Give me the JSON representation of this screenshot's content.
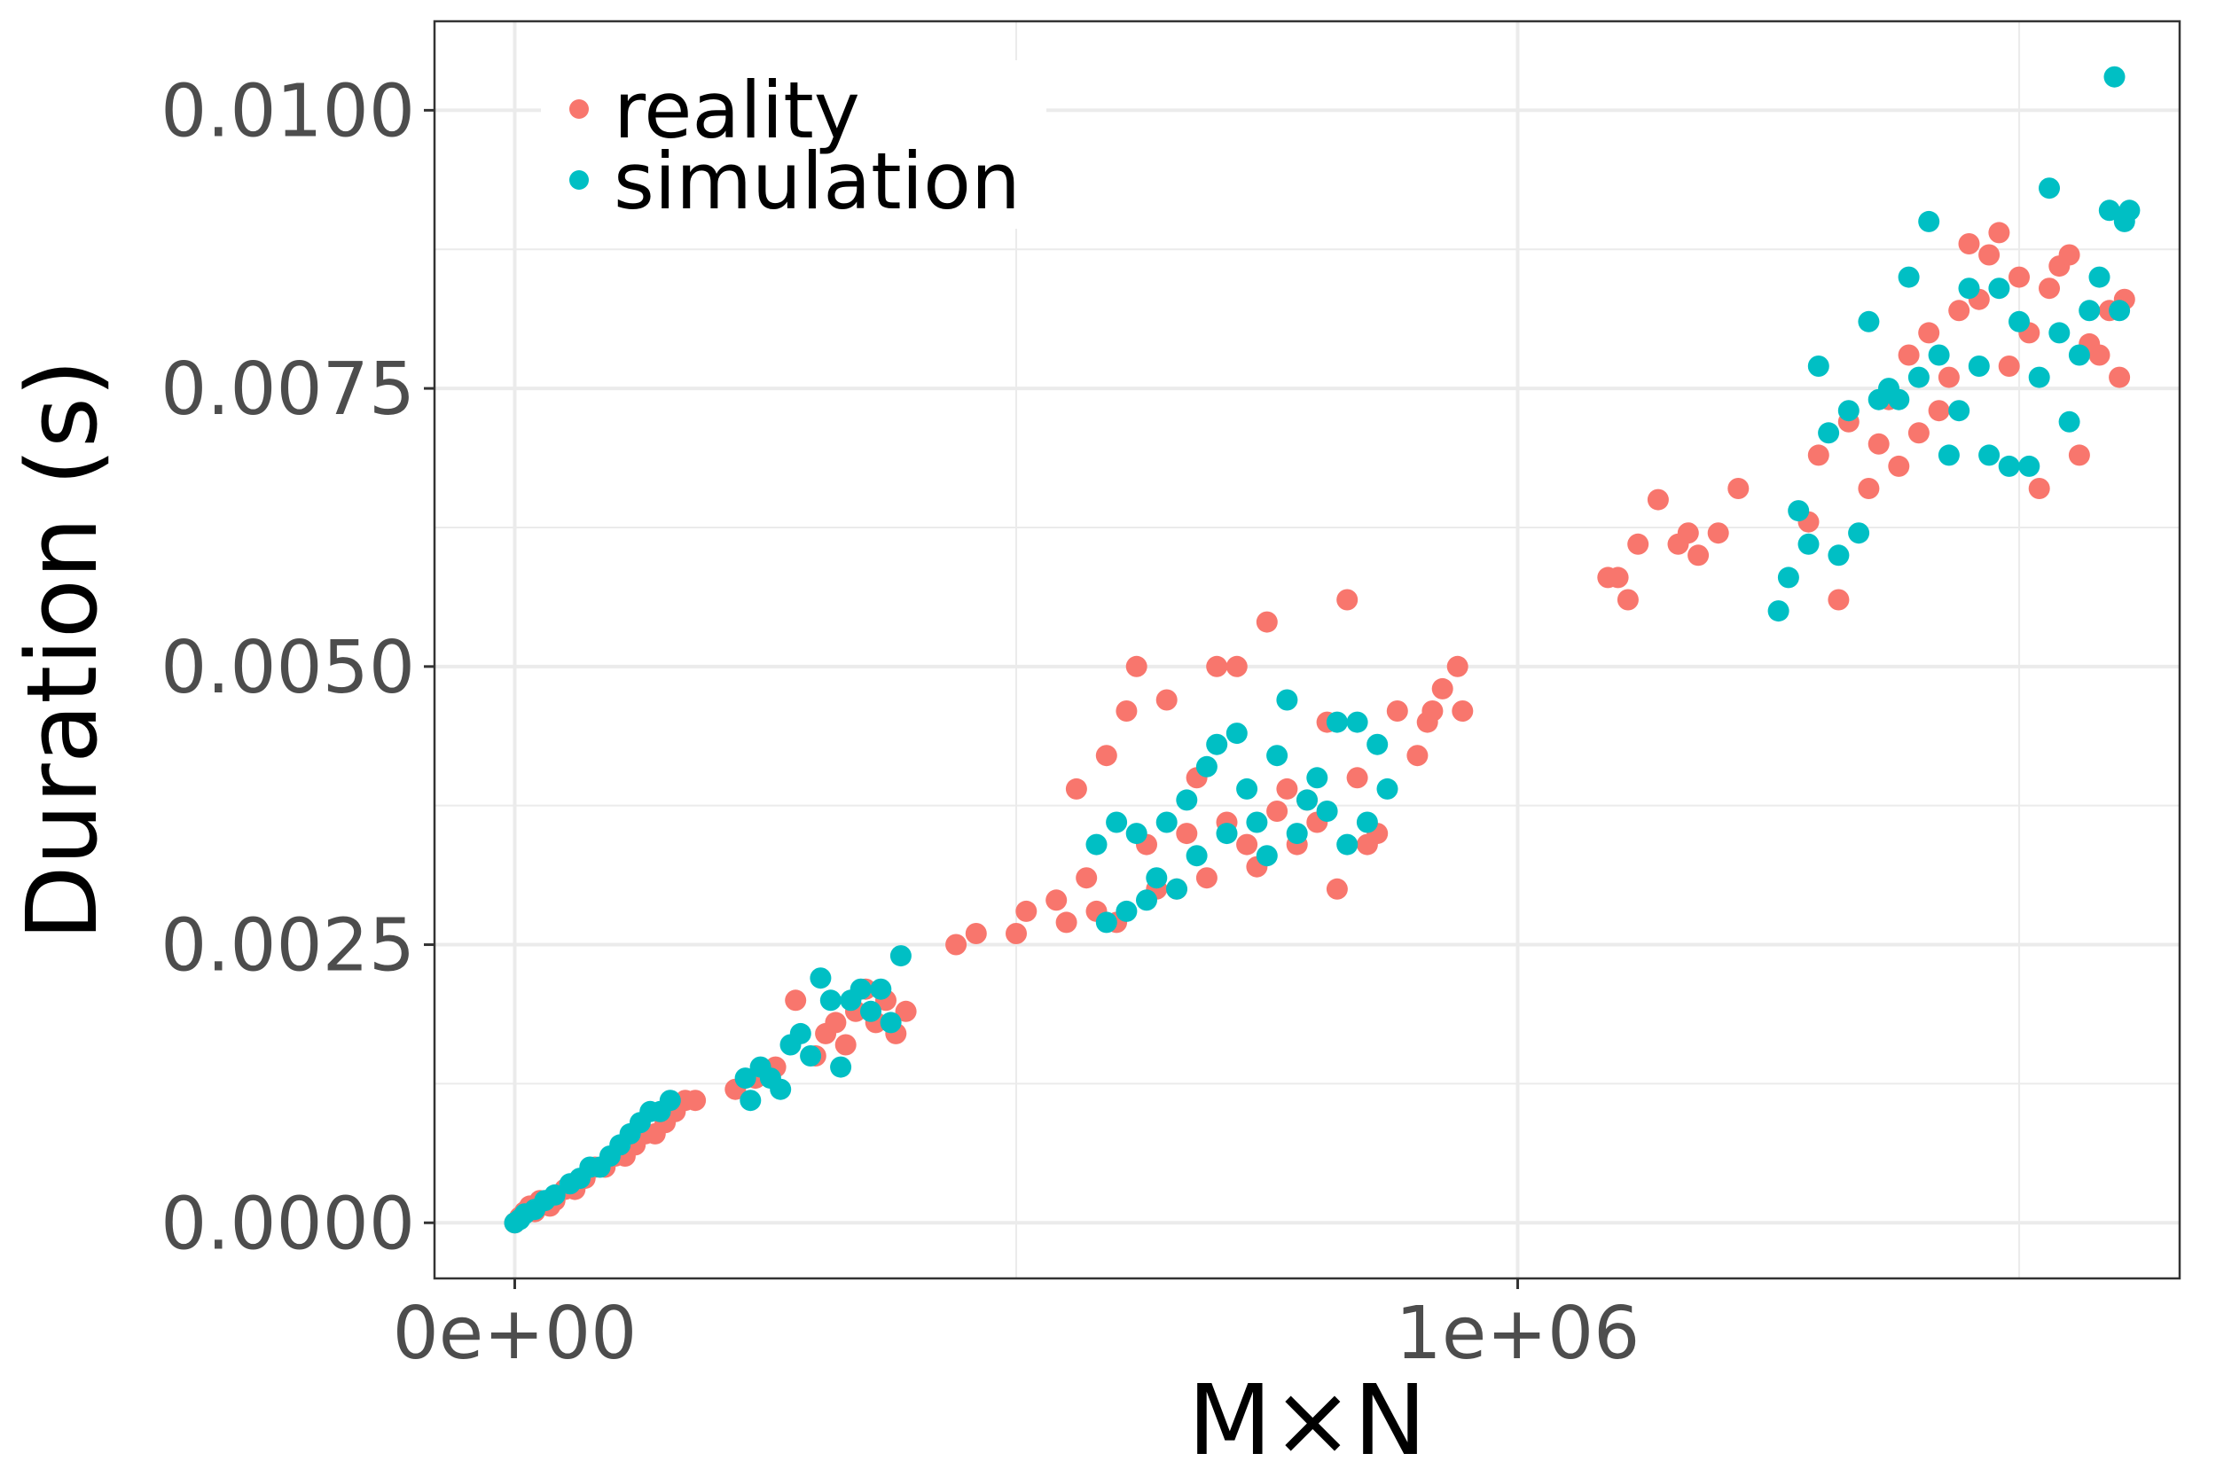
{
  "chart_data": {
    "type": "scatter",
    "xlabel": "M×N",
    "ylabel": "Duration (s)",
    "xlim": [
      -80000,
      1660000
    ],
    "ylim": [
      -0.0005,
      0.0108
    ],
    "x_ticks": [
      0,
      1000000
    ],
    "x_tick_labels": [
      "0e+00",
      "1e+06"
    ],
    "x_minor_ticks": [
      500000,
      1500000
    ],
    "y_ticks": [
      0,
      0.0025,
      0.005,
      0.0075,
      0.01
    ],
    "y_tick_labels": [
      "0.0000",
      "0.0025",
      "0.0050",
      "0.0075",
      "0.0100"
    ],
    "y_minor_ticks": [
      0.00125,
      0.00375,
      0.00625,
      0.00875
    ],
    "grid": true,
    "legend_position": "top-left",
    "series": [
      {
        "name": "reality",
        "color": "#F8766D",
        "points": [
          [
            0,
            0
          ],
          [
            5000,
            5e-05
          ],
          [
            10000,
            0.0001
          ],
          [
            15000,
            0.00015
          ],
          [
            20000,
            0.0001
          ],
          [
            25000,
            0.0002
          ],
          [
            35000,
            0.00015
          ],
          [
            40000,
            0.0002
          ],
          [
            50000,
            0.0003
          ],
          [
            60000,
            0.0003
          ],
          [
            70000,
            0.0004
          ],
          [
            80000,
            0.0005
          ],
          [
            90000,
            0.0005
          ],
          [
            100000,
            0.0006
          ],
          [
            110000,
            0.0006
          ],
          [
            120000,
            0.0007
          ],
          [
            130000,
            0.0008
          ],
          [
            140000,
            0.0008
          ],
          [
            150000,
            0.0009
          ],
          [
            160000,
            0.001
          ],
          [
            170000,
            0.0011
          ],
          [
            180000,
            0.0011
          ],
          [
            220000,
            0.0012
          ],
          [
            240000,
            0.0013
          ],
          [
            260000,
            0.0014
          ],
          [
            280000,
            0.002
          ],
          [
            300000,
            0.0015
          ],
          [
            310000,
            0.0017
          ],
          [
            320000,
            0.0018
          ],
          [
            330000,
            0.0016
          ],
          [
            340000,
            0.0019
          ],
          [
            350000,
            0.0021
          ],
          [
            360000,
            0.0018
          ],
          [
            370000,
            0.002
          ],
          [
            380000,
            0.0017
          ],
          [
            390000,
            0.0019
          ],
          [
            440000,
            0.0025
          ],
          [
            460000,
            0.0026
          ],
          [
            500000,
            0.0026
          ],
          [
            510000,
            0.0028
          ],
          [
            540000,
            0.0029
          ],
          [
            550000,
            0.0027
          ],
          [
            560000,
            0.0039
          ],
          [
            570000,
            0.0031
          ],
          [
            580000,
            0.0028
          ],
          [
            590000,
            0.0042
          ],
          [
            600000,
            0.0027
          ],
          [
            610000,
            0.0046
          ],
          [
            620000,
            0.005
          ],
          [
            630000,
            0.0034
          ],
          [
            640000,
            0.003
          ],
          [
            650000,
            0.0047
          ],
          [
            660000,
            0.003
          ],
          [
            670000,
            0.0035
          ],
          [
            680000,
            0.004
          ],
          [
            690000,
            0.0031
          ],
          [
            700000,
            0.005
          ],
          [
            710000,
            0.0036
          ],
          [
            720000,
            0.005
          ],
          [
            730000,
            0.0034
          ],
          [
            740000,
            0.0032
          ],
          [
            750000,
            0.0054
          ],
          [
            760000,
            0.0037
          ],
          [
            770000,
            0.0039
          ],
          [
            780000,
            0.0034
          ],
          [
            790000,
            0.0038
          ],
          [
            800000,
            0.0036
          ],
          [
            810000,
            0.0045
          ],
          [
            820000,
            0.003
          ],
          [
            830000,
            0.0056
          ],
          [
            840000,
            0.004
          ],
          [
            850000,
            0.0034
          ],
          [
            860000,
            0.0035
          ],
          [
            880000,
            0.0046
          ],
          [
            900000,
            0.0042
          ],
          [
            910000,
            0.0045
          ],
          [
            915000,
            0.0046
          ],
          [
            925000,
            0.0048
          ],
          [
            940000,
            0.005
          ],
          [
            945000,
            0.0046
          ],
          [
            1090000,
            0.0058
          ],
          [
            1100000,
            0.0058
          ],
          [
            1110000,
            0.0056
          ],
          [
            1120000,
            0.0061
          ],
          [
            1140000,
            0.0065
          ],
          [
            1160000,
            0.0061
          ],
          [
            1170000,
            0.0062
          ],
          [
            1180000,
            0.006
          ],
          [
            1200000,
            0.0062
          ],
          [
            1220000,
            0.0066
          ],
          [
            1290000,
            0.0063
          ],
          [
            1300000,
            0.0069
          ],
          [
            1320000,
            0.0056
          ],
          [
            1330000,
            0.0072
          ],
          [
            1350000,
            0.0066
          ],
          [
            1360000,
            0.007
          ],
          [
            1370000,
            0.0074
          ],
          [
            1380000,
            0.0068
          ],
          [
            1390000,
            0.0078
          ],
          [
            1400000,
            0.0071
          ],
          [
            1410000,
            0.008
          ],
          [
            1420000,
            0.0073
          ],
          [
            1430000,
            0.0076
          ],
          [
            1440000,
            0.0082
          ],
          [
            1450000,
            0.0088
          ],
          [
            1460000,
            0.0083
          ],
          [
            1470000,
            0.0087
          ],
          [
            1480000,
            0.0089
          ],
          [
            1490000,
            0.0077
          ],
          [
            1500000,
            0.0085
          ],
          [
            1510000,
            0.008
          ],
          [
            1520000,
            0.0066
          ],
          [
            1530000,
            0.0084
          ],
          [
            1540000,
            0.0086
          ],
          [
            1550000,
            0.0087
          ],
          [
            1560000,
            0.0069
          ],
          [
            1570000,
            0.0079
          ],
          [
            1580000,
            0.0078
          ],
          [
            1590000,
            0.0082
          ],
          [
            1600000,
            0.0076
          ],
          [
            1605000,
            0.0083
          ]
        ]
      },
      {
        "name": "simulation",
        "color": "#00BFC4",
        "points": [
          [
            0,
            0
          ],
          [
            5000,
            3e-05
          ],
          [
            10000,
            8e-05
          ],
          [
            20000,
            0.00012
          ],
          [
            30000,
            0.0002
          ],
          [
            40000,
            0.00025
          ],
          [
            55000,
            0.00035
          ],
          [
            65000,
            0.0004
          ],
          [
            75000,
            0.0005
          ],
          [
            85000,
            0.0005
          ],
          [
            95000,
            0.0006
          ],
          [
            105000,
            0.0007
          ],
          [
            115000,
            0.0008
          ],
          [
            125000,
            0.0009
          ],
          [
            135000,
            0.001
          ],
          [
            145000,
            0.001
          ],
          [
            155000,
            0.0011
          ],
          [
            230000,
            0.0013
          ],
          [
            235000,
            0.0011
          ],
          [
            245000,
            0.0014
          ],
          [
            255000,
            0.0013
          ],
          [
            265000,
            0.0012
          ],
          [
            275000,
            0.0016
          ],
          [
            285000,
            0.0017
          ],
          [
            295000,
            0.0015
          ],
          [
            305000,
            0.0022
          ],
          [
            315000,
            0.002
          ],
          [
            325000,
            0.0014
          ],
          [
            335000,
            0.002
          ],
          [
            345000,
            0.0021
          ],
          [
            355000,
            0.0019
          ],
          [
            365000,
            0.0021
          ],
          [
            375000,
            0.0018
          ],
          [
            385000,
            0.0024
          ],
          [
            580000,
            0.0034
          ],
          [
            590000,
            0.0027
          ],
          [
            600000,
            0.0036
          ],
          [
            610000,
            0.0028
          ],
          [
            620000,
            0.0035
          ],
          [
            630000,
            0.0029
          ],
          [
            640000,
            0.0031
          ],
          [
            650000,
            0.0036
          ],
          [
            660000,
            0.003
          ],
          [
            670000,
            0.0038
          ],
          [
            680000,
            0.0033
          ],
          [
            690000,
            0.0041
          ],
          [
            700000,
            0.0043
          ],
          [
            710000,
            0.0035
          ],
          [
            720000,
            0.0044
          ],
          [
            730000,
            0.0039
          ],
          [
            740000,
            0.0036
          ],
          [
            750000,
            0.0033
          ],
          [
            760000,
            0.0042
          ],
          [
            770000,
            0.0047
          ],
          [
            780000,
            0.0035
          ],
          [
            790000,
            0.0038
          ],
          [
            800000,
            0.004
          ],
          [
            810000,
            0.0037
          ],
          [
            820000,
            0.0045
          ],
          [
            830000,
            0.0034
          ],
          [
            840000,
            0.0045
          ],
          [
            850000,
            0.0036
          ],
          [
            860000,
            0.0043
          ],
          [
            870000,
            0.0039
          ],
          [
            1260000,
            0.0055
          ],
          [
            1270000,
            0.0058
          ],
          [
            1280000,
            0.0064
          ],
          [
            1290000,
            0.0061
          ],
          [
            1300000,
            0.0077
          ],
          [
            1310000,
            0.0071
          ],
          [
            1320000,
            0.006
          ],
          [
            1330000,
            0.0073
          ],
          [
            1340000,
            0.0062
          ],
          [
            1350000,
            0.0081
          ],
          [
            1360000,
            0.0074
          ],
          [
            1370000,
            0.0075
          ],
          [
            1380000,
            0.0074
          ],
          [
            1390000,
            0.0085
          ],
          [
            1400000,
            0.0076
          ],
          [
            1410000,
            0.009
          ],
          [
            1420000,
            0.0078
          ],
          [
            1430000,
            0.0069
          ],
          [
            1440000,
            0.0073
          ],
          [
            1450000,
            0.0084
          ],
          [
            1460000,
            0.0077
          ],
          [
            1470000,
            0.0069
          ],
          [
            1480000,
            0.0084
          ],
          [
            1490000,
            0.0068
          ],
          [
            1500000,
            0.0081
          ],
          [
            1510000,
            0.0068
          ],
          [
            1520000,
            0.0076
          ],
          [
            1530000,
            0.0093
          ],
          [
            1540000,
            0.008
          ],
          [
            1550000,
            0.0072
          ],
          [
            1560000,
            0.0078
          ],
          [
            1570000,
            0.0082
          ],
          [
            1580000,
            0.0085
          ],
          [
            1590000,
            0.0091
          ],
          [
            1595000,
            0.0103
          ],
          [
            1600000,
            0.0082
          ],
          [
            1605000,
            0.009
          ],
          [
            1610000,
            0.0091
          ]
        ]
      }
    ]
  }
}
